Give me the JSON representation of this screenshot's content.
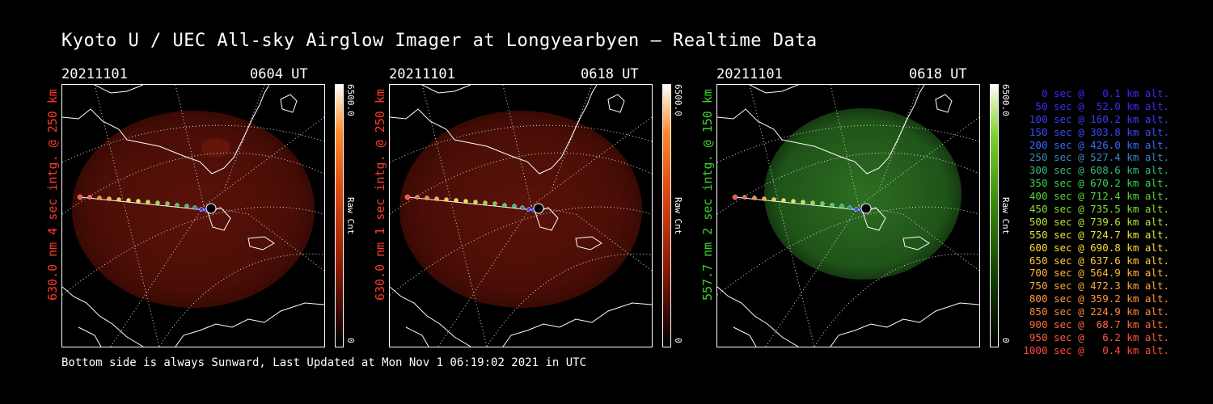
{
  "title": "Kyoto U / UEC All-sky Airglow Imager at Longyearbyen — Realtime Data",
  "panels": [
    {
      "date": "20211101",
      "time": "0604 UT",
      "label": "630.0 nm 4 sec intg. @ 250 km",
      "label_color": "#ff3a2a",
      "colorbar_max": "6500.0",
      "colorbar_min": "0",
      "colorbar_label": "Raw Cnt",
      "palette": "red"
    },
    {
      "date": "20211101",
      "time": "0618 UT",
      "label": "630.0 nm 1 sec intg. @ 250 km",
      "label_color": "#ff3a2a",
      "colorbar_max": "6500.0",
      "colorbar_min": "0",
      "colorbar_label": "Raw Cnt",
      "palette": "red"
    },
    {
      "date": "20211101",
      "time": "0618 UT",
      "label": "557.7 nm 2 sec intg. @ 150 km",
      "label_color": "#3ad62a",
      "colorbar_max": "6500.0",
      "colorbar_min": "0",
      "colorbar_label": "Raw Cnt",
      "palette": "green"
    }
  ],
  "footer": "Bottom side is always Sunward, Last Updated at Mon Nov  1 06:19:02 2021 in UTC",
  "legend": [
    {
      "text": "   0 sec @   0.1 km alt.",
      "color": "#3a2aff"
    },
    {
      "text": "  50 sec @  52.0 km alt.",
      "color": "#3a2aff"
    },
    {
      "text": " 100 sec @ 160.2 km alt.",
      "color": "#3a3aff"
    },
    {
      "text": " 150 sec @ 303.8 km alt.",
      "color": "#3a4aff"
    },
    {
      "text": " 200 sec @ 426.0 km alt.",
      "color": "#3a6aff"
    },
    {
      "text": " 250 sec @ 527.4 km alt.",
      "color": "#3a8ab8"
    },
    {
      "text": " 300 sec @ 608.6 km alt.",
      "color": "#3ab87a"
    },
    {
      "text": " 350 sec @ 670.2 km alt.",
      "color": "#3ad64a"
    },
    {
      "text": " 400 sec @ 712.4 km alt.",
      "color": "#5ad63a"
    },
    {
      "text": " 450 sec @ 735.5 km alt.",
      "color": "#8ade3a"
    },
    {
      "text": " 500 sec @ 739.6 km alt.",
      "color": "#b8e63a"
    },
    {
      "text": " 550 sec @ 724.7 km alt.",
      "color": "#e6e63a"
    },
    {
      "text": " 600 sec @ 690.8 km alt.",
      "color": "#ffd83a"
    },
    {
      "text": " 650 sec @ 637.6 km alt.",
      "color": "#ffc83a"
    },
    {
      "text": " 700 sec @ 564.9 km alt.",
      "color": "#ffb83a"
    },
    {
      "text": " 750 sec @ 472.3 km alt.",
      "color": "#ffa83a"
    },
    {
      "text": " 800 sec @ 359.2 km alt.",
      "color": "#ff983a"
    },
    {
      "text": " 850 sec @ 224.9 km alt.",
      "color": "#ff883a"
    },
    {
      "text": " 900 sec @  68.7 km alt.",
      "color": "#ff6a3a"
    },
    {
      "text": " 950 sec @   6.2 km alt.",
      "color": "#ff5a3a"
    },
    {
      "text": "1000 sec @   0.4 km alt.",
      "color": "#ff4a3a"
    }
  ]
}
